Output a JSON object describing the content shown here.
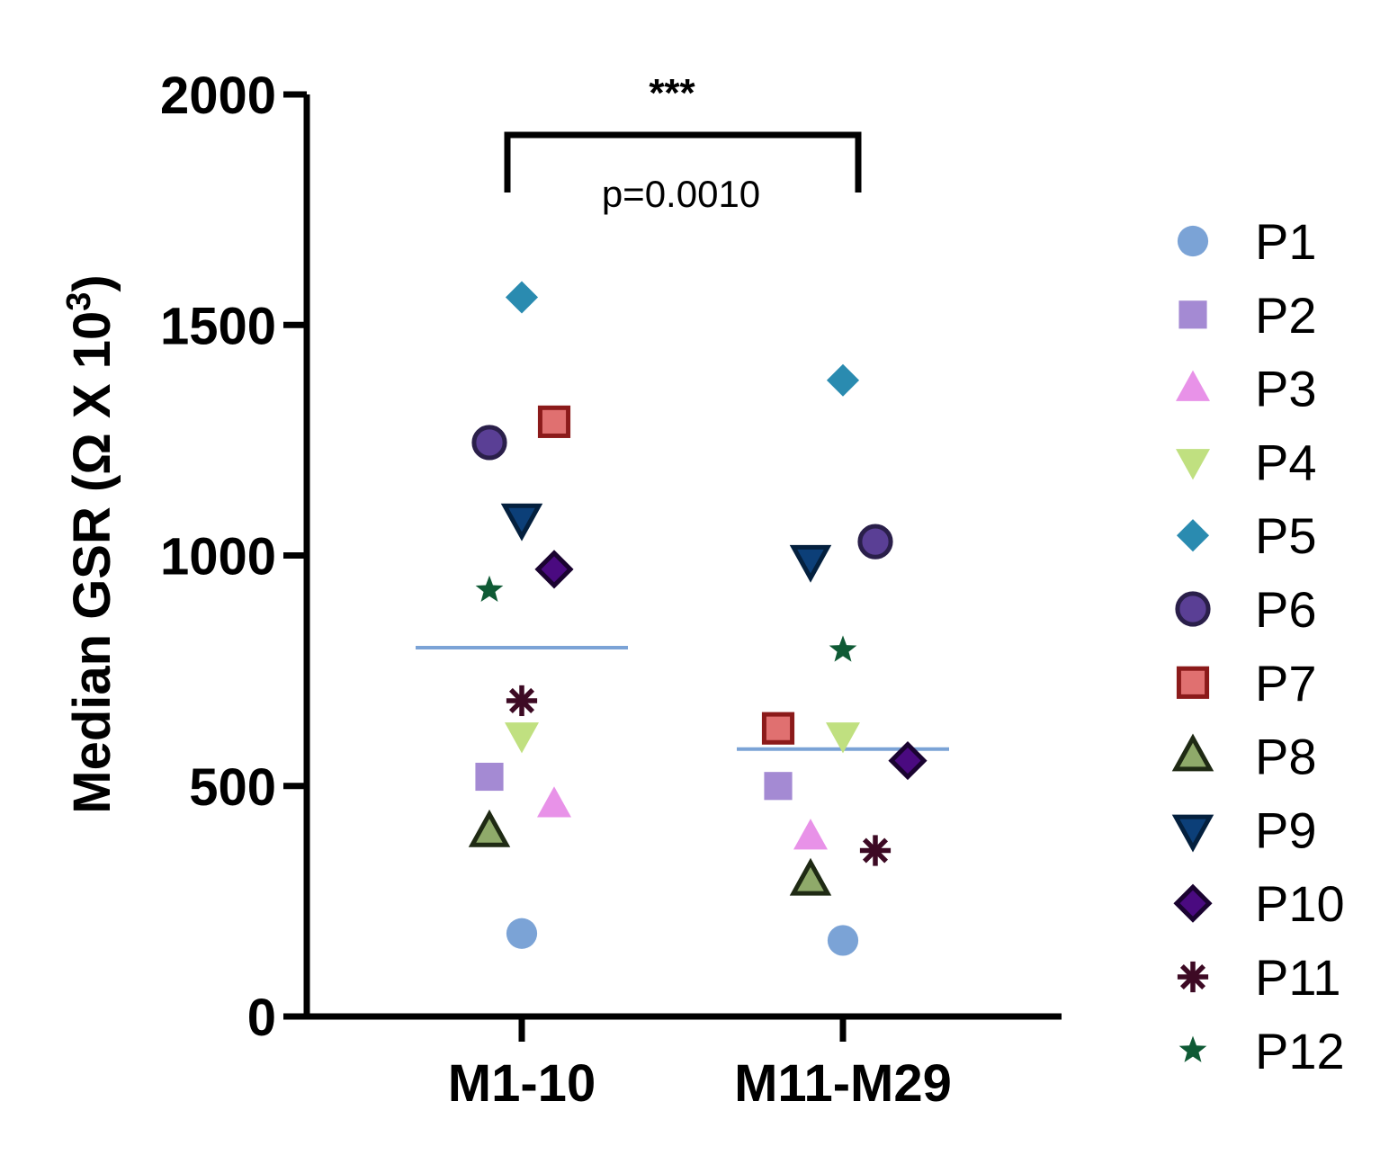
{
  "chart_data": {
    "type": "scatter",
    "ylabel_main": "Median GSR (Ω X 10",
    "ylabel_sup": "3",
    "ylabel_close": ")",
    "ylim": [
      0,
      2000
    ],
    "yticks": [
      "0",
      "500",
      "1000",
      "1500",
      "2000"
    ],
    "categories": [
      "M1-10",
      "M11-M29"
    ],
    "medians": [
      800,
      580
    ],
    "median_color": "#7ba3d6",
    "significance": {
      "stars": "***",
      "p_text": "p=0.0010"
    },
    "legend_position": "right",
    "series": [
      {
        "name": "P1",
        "marker": "circle",
        "fill": "#7ba3d6",
        "stroke": "none",
        "values": [
          180,
          165
        ]
      },
      {
        "name": "P2",
        "marker": "square",
        "fill": "#a48ad3",
        "stroke": "none",
        "values": [
          520,
          500
        ]
      },
      {
        "name": "P3",
        "marker": "triangle-up",
        "fill": "#e892e8",
        "stroke": "none",
        "values": [
          460,
          390
        ]
      },
      {
        "name": "P4",
        "marker": "triangle-down",
        "fill": "#c0e080",
        "stroke": "none",
        "values": [
          610,
          610
        ]
      },
      {
        "name": "P5",
        "marker": "diamond",
        "fill": "#2a8bb0",
        "stroke": "none",
        "values": [
          1560,
          1380
        ]
      },
      {
        "name": "P6",
        "marker": "circle",
        "fill": "#5a3f95",
        "stroke": "#2a1f4a",
        "values": [
          1245,
          1030
        ]
      },
      {
        "name": "P7",
        "marker": "square",
        "fill": "#e07070",
        "stroke": "#8b1a1a",
        "values": [
          1290,
          625
        ]
      },
      {
        "name": "P8",
        "marker": "triangle-up",
        "fill": "#8faa6a",
        "stroke": "#1f2a14",
        "values": [
          400,
          295
        ]
      },
      {
        "name": "P9",
        "marker": "triangle-down",
        "fill": "#0c3f78",
        "stroke": "#04203e",
        "values": [
          1080,
          990
        ]
      },
      {
        "name": "P10",
        "marker": "diamond",
        "fill": "#4a0a80",
        "stroke": "#1a0330",
        "values": [
          970,
          555
        ]
      },
      {
        "name": "P11",
        "marker": "asterisk",
        "fill": "#3d0a24",
        "stroke": "#3d0a24",
        "values": [
          685,
          360
        ]
      },
      {
        "name": "P12",
        "marker": "star",
        "fill": "#0f5a35",
        "stroke": "none",
        "values": [
          925,
          795
        ]
      }
    ]
  }
}
